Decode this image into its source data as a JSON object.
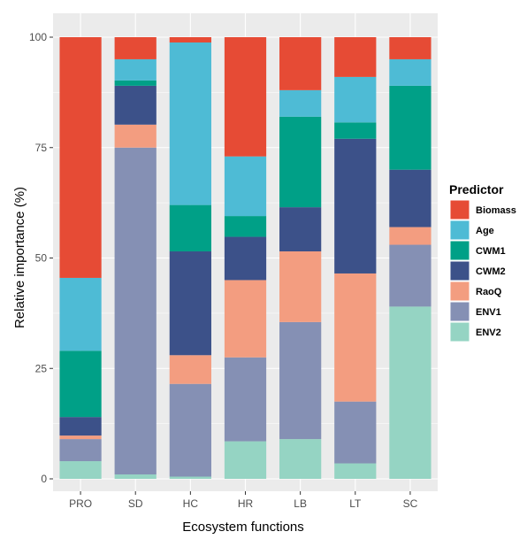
{
  "chart_data": {
    "type": "bar",
    "stacked": true,
    "xlabel": "Ecosystem functions",
    "ylabel": "Relative importance (%)",
    "ylim": [
      0,
      100
    ],
    "yticks": [
      "0",
      "25",
      "50",
      "75",
      "100"
    ],
    "grid": true,
    "legend_position": "right",
    "legend_title": "Predictor",
    "categories": [
      "PRO",
      "SD",
      "HC",
      "HR",
      "LB",
      "LT",
      "SC"
    ],
    "series": [
      {
        "name": "ENV2",
        "color": "#95d4c3",
        "values": [
          4,
          1,
          0.5,
          8.5,
          9,
          3.5,
          39
        ]
      },
      {
        "name": "ENV1",
        "color": "#8590b4",
        "values": [
          5,
          74,
          21,
          19,
          26.5,
          14,
          14
        ]
      },
      {
        "name": "RaoQ",
        "color": "#f39d80",
        "values": [
          0.8,
          5.2,
          6.5,
          17.5,
          16,
          29,
          4
        ]
      },
      {
        "name": "CWM2",
        "color": "#3c5189",
        "values": [
          4.2,
          8.8,
          23.5,
          9.8,
          10,
          30.5,
          13
        ]
      },
      {
        "name": "CWM1",
        "color": "#00a087",
        "values": [
          15,
          1.2,
          10.5,
          4.7,
          20.5,
          3.7,
          19
        ]
      },
      {
        "name": "Age",
        "color": "#4ebbd5",
        "values": [
          16.5,
          4.8,
          36.8,
          13.5,
          6,
          10.3,
          6
        ]
      },
      {
        "name": "Biomass",
        "color": "#e64b35",
        "values": [
          54.5,
          5,
          1.2,
          27,
          12,
          9,
          5
        ]
      }
    ],
    "legend_order": [
      "Biomass",
      "Age",
      "CWM1",
      "CWM2",
      "RaoQ",
      "ENV1",
      "ENV2"
    ]
  },
  "colors": {
    "panel_background": "#ebebeb",
    "gridline": "#ffffff"
  }
}
